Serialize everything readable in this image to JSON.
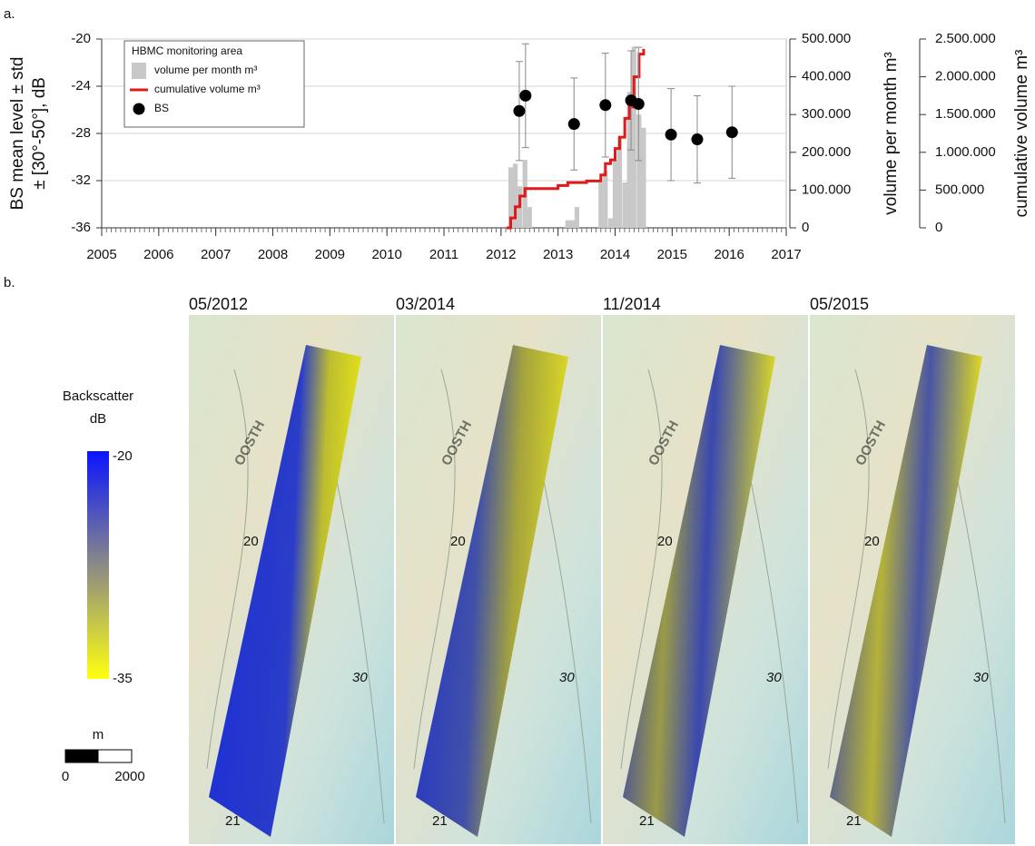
{
  "chart_data": {
    "type": "combo",
    "ylabel": [
      "BS mean level ± std",
      "± [30°-50°], dB"
    ],
    "y2label": "volume per month m³",
    "y3label": "cumulative volume m³",
    "legend_title": "HBMC monitoring area",
    "legend": "upper left",
    "grid": true,
    "xlim": [
      2005,
      2017
    ],
    "xticks": [
      2005,
      2006,
      2007,
      2008,
      2009,
      2010,
      2011,
      2012,
      2013,
      2014,
      2015,
      2016,
      2017
    ],
    "ylim": [
      -36,
      -20
    ],
    "yticks": [
      -36,
      -32,
      -28,
      -24,
      -20
    ],
    "y2lim": [
      0,
      500000
    ],
    "y2ticks": [
      0,
      {
        "value": 100000,
        "label": "100.000"
      },
      {
        "value": 200000,
        "label": "200.000"
      },
      {
        "value": 300000,
        "label": "300.000"
      },
      {
        "value": 400000,
        "label": "400.000"
      },
      {
        "value": 500000,
        "label": "500.000"
      }
    ],
    "y3lim": [
      0,
      2500000
    ],
    "y3ticks": [
      0,
      {
        "value": 500000,
        "label": "500.000"
      },
      {
        "value": 1000000,
        "label": "1.000.000"
      },
      {
        "value": 1500000,
        "label": "1.500.000"
      },
      {
        "value": 2000000,
        "label": "2.000.000"
      },
      {
        "value": 2500000,
        "label": "2.500.000"
      }
    ],
    "series": [
      {
        "name": "volume per month m³",
        "type": "bar",
        "axis": "y2",
        "color": "#c8c8c8",
        "x": [
          2012.17,
          2012.25,
          2012.33,
          2012.42,
          2012.5,
          2013.17,
          2013.25,
          2013.33,
          2013.75,
          2013.83,
          2013.92,
          2014.0,
          2014.08,
          2014.17,
          2014.25,
          2014.33,
          2014.42,
          2014.5
        ],
        "values": [
          160000,
          170000,
          110000,
          180000,
          55000,
          20000,
          20000,
          55000,
          120000,
          150000,
          25000,
          180000,
          240000,
          120000,
          360000,
          480000,
          300000,
          265000
        ]
      },
      {
        "name": "cumulative volume m³",
        "type": "line",
        "axis": "y3",
        "color": "#e0191a",
        "step": true,
        "x": [
          2012.1,
          2012.17,
          2012.25,
          2012.33,
          2012.42,
          2013.0,
          2013.17,
          2013.5,
          2013.75,
          2013.83,
          2013.92,
          2014.0,
          2014.08,
          2014.17,
          2014.25,
          2014.33,
          2014.42,
          2014.5
        ],
        "values": [
          0,
          130000,
          280000,
          420000,
          520000,
          560000,
          600000,
          620000,
          700000,
          850000,
          900000,
          1050000,
          1200000,
          1450000,
          1600000,
          2000000,
          2300000,
          2370000
        ]
      },
      {
        "name": "BS",
        "type": "scatter",
        "color": "#000000",
        "x": [
          2012.32,
          2012.43,
          2013.28,
          2013.83,
          2014.28,
          2014.41,
          2014.98,
          2015.44,
          2016.05
        ],
        "values": [
          -26.1,
          -24.8,
          -27.2,
          -25.6,
          -25.2,
          -25.5,
          -28.1,
          -28.5,
          -27.9
        ],
        "errors": [
          4.2,
          4.4,
          3.9,
          4.4,
          4.2,
          4.8,
          3.9,
          3.7,
          3.9
        ]
      }
    ]
  },
  "figure": {
    "panel_labels": [
      "a.",
      "b."
    ],
    "map_titles": [
      "05/2012",
      "03/2014",
      "11/2014",
      "05/2015"
    ],
    "map_watermark": "OOSTH",
    "contour_labels": [
      "20",
      "30",
      "21"
    ],
    "colorbar": {
      "title": [
        "Backscatter",
        "dB"
      ],
      "ticks": [
        -20,
        -35
      ]
    },
    "scale_bar": {
      "unit": "m",
      "ticks": [
        0,
        2000
      ]
    }
  }
}
